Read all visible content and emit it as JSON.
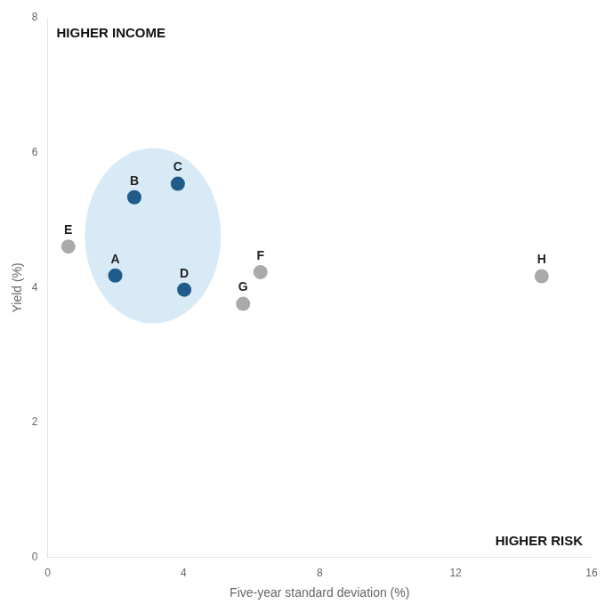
{
  "chart_data": {
    "type": "scatter",
    "xlabel": "Five-year standard deviation (%)",
    "ylabel": "Yield (%)",
    "annotations": [
      "HIGHER INCOME",
      "HIGHER RISK"
    ],
    "point_labels": [
      "A",
      "B",
      "C",
      "D",
      "E",
      "F",
      "G",
      "H"
    ],
    "x": [
      1.99,
      2.55,
      3.83,
      4.02,
      0.61,
      6.26,
      5.75,
      14.53
    ],
    "values": [
      4.18,
      5.34,
      5.54,
      3.97,
      4.61,
      4.23,
      3.76,
      4.17
    ],
    "colors": [
      "#1f5c8b",
      "#1f5c8b",
      "#1f5c8b",
      "#1f5c8b",
      "#aaaaaa",
      "#aaaaaa",
      "#aaaaaa",
      "#aaaaaa"
    ],
    "highlight": {
      "x": 3.1,
      "y": 4.77,
      "width": 4.0,
      "height": 2.6,
      "color": "#b8d9ed"
    },
    "xlim": [
      0,
      16
    ],
    "xticks": [
      0,
      4,
      8,
      12,
      16
    ],
    "ylim": [
      0,
      8
    ],
    "yticks": [
      0,
      2,
      4,
      6,
      8
    ],
    "grid": false
  }
}
